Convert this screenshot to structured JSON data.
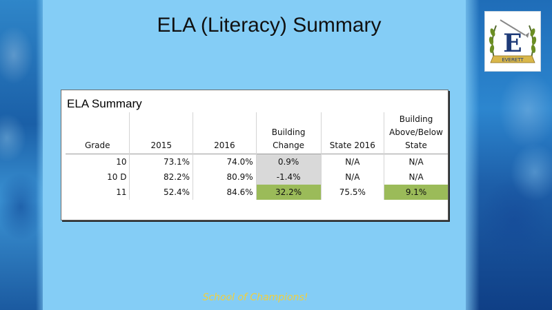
{
  "slide": {
    "title": "ELA (Literacy) Summary",
    "motto": "School of Champions!",
    "background_color": "#84cdf6",
    "motto_color": "#f2cf3a"
  },
  "logo": {
    "letter": "E",
    "banner_text": "EVERETT"
  },
  "table": {
    "title": "ELA Summary",
    "headers": {
      "grade": "Grade",
      "y2015": "2015",
      "y2016": "2016",
      "building_change_1": "Building",
      "building_change_2": "Change",
      "state2016": "State 2016",
      "above_1": "Building",
      "above_2": "Above/Below",
      "above_3": "State"
    },
    "rows": [
      {
        "grade": "10",
        "y2015": "73.1%",
        "y2016": "74.0%",
        "building_change": "0.9%",
        "state2016": "N/A",
        "above_below": "N/A",
        "change_highlight": "gray",
        "above_highlight": "none"
      },
      {
        "grade": "10 D",
        "y2015": "82.2%",
        "y2016": "80.9%",
        "building_change": "-1.4%",
        "state2016": "N/A",
        "above_below": "N/A",
        "change_highlight": "gray",
        "above_highlight": "none"
      },
      {
        "grade": "11",
        "y2015": "52.4%",
        "y2016": "84.6%",
        "building_change": "32.2%",
        "state2016": "75.5%",
        "above_below": "9.1%",
        "change_highlight": "green",
        "above_highlight": "green"
      }
    ],
    "highlight_colors": {
      "gray": "#d9d9d9",
      "green": "#9bbb59"
    }
  }
}
